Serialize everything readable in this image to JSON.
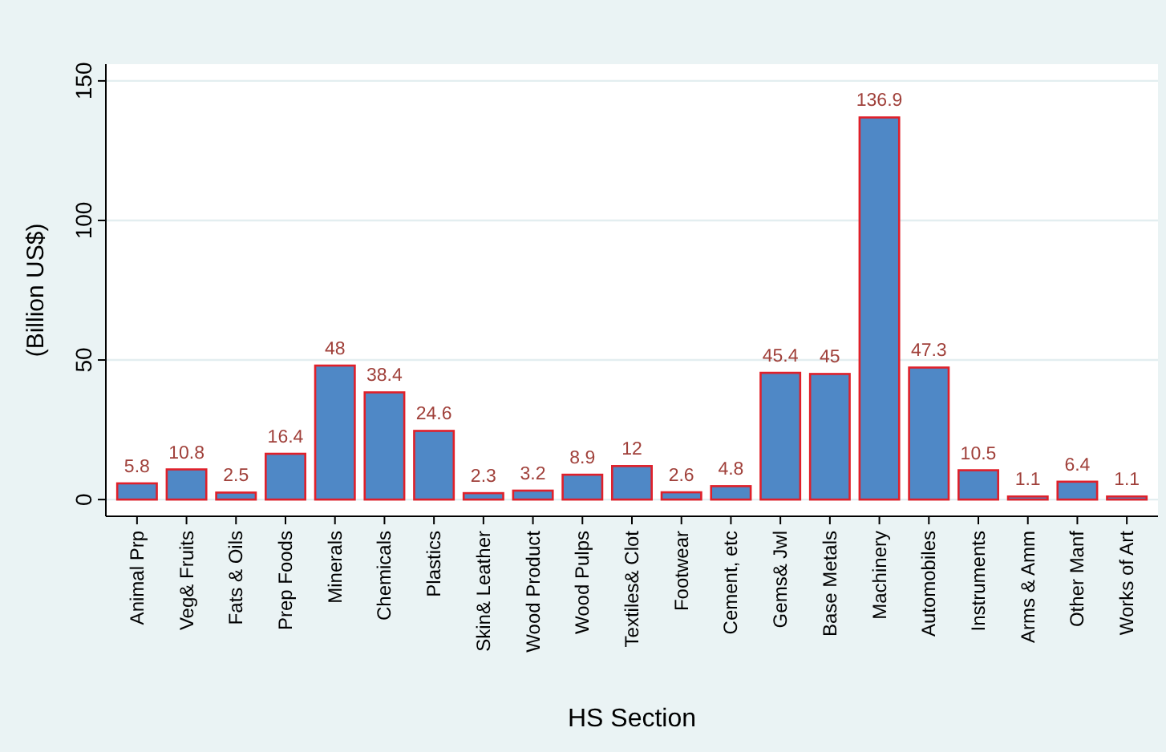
{
  "chart_data": {
    "type": "bar",
    "xlabel": "HS Section",
    "ylabel": "(Billion US$)",
    "categories": [
      "Animal Prp",
      "Veg& Fruits",
      "Fats & Oils",
      "Prep Foods",
      "Minerals",
      "Chemicals",
      "Plastics",
      "Skin& Leather",
      "Wood Product",
      "Wood Pulps",
      "Textiles& Clot",
      "Footwear",
      "Cement, etc",
      "Gems& Jwl",
      "Base Metals",
      "Machinery",
      "Automobiles",
      "Instruments",
      "Arms & Amm",
      "Other Manf",
      "Works of Art"
    ],
    "values": [
      5.8,
      10.8,
      2.5,
      16.4,
      48,
      38.4,
      24.6,
      2.3,
      3.2,
      8.9,
      12,
      2.6,
      4.8,
      45.4,
      45,
      136.9,
      47.3,
      10.5,
      1.1,
      6.4,
      1.1
    ],
    "color": "#4f88c6",
    "ylim": [
      -6,
      156
    ],
    "yticks": [
      0,
      50,
      100,
      150
    ],
    "grid": "y",
    "data_labels": true
  }
}
